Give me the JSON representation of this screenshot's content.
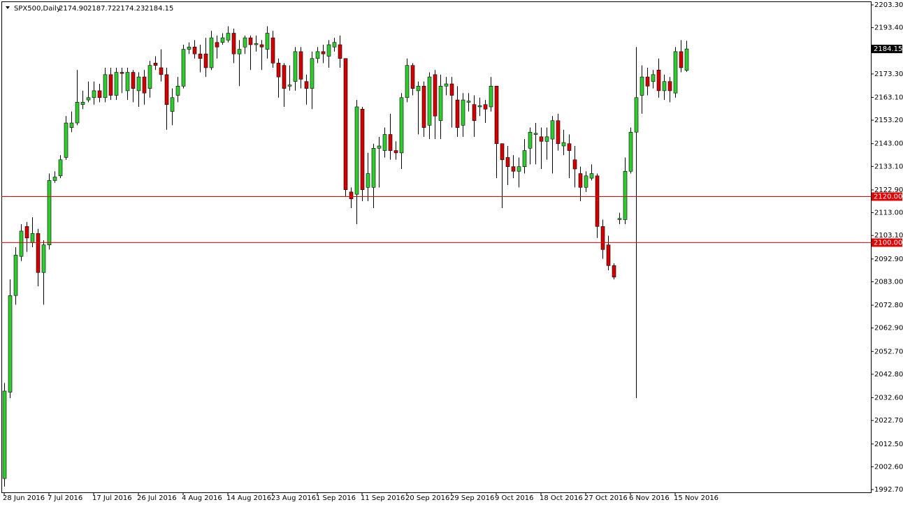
{
  "chart_data": {
    "type": "candlestick",
    "header": {
      "symbol": "SPX500,Daily",
      "prices": [
        "2174.90",
        "2187.72",
        "2174.23",
        "2184.15"
      ]
    },
    "categories": [
      "28 Jun 2016",
      null,
      null,
      null,
      null,
      null,
      null,
      null,
      "7 Jul 2016",
      null,
      null,
      null,
      null,
      null,
      null,
      null,
      "17 Jul 2016",
      null,
      null,
      null,
      null,
      null,
      null,
      null,
      "26 Jul 2016",
      null,
      null,
      null,
      null,
      null,
      null,
      null,
      "4 Aug 2016",
      null,
      null,
      null,
      null,
      null,
      null,
      null,
      "14 Aug 2016",
      null,
      null,
      null,
      null,
      null,
      null,
      null,
      "23 Aug 2016",
      null,
      null,
      null,
      null,
      null,
      null,
      null,
      "1 Sep 2016",
      null,
      null,
      null,
      null,
      null,
      null,
      null,
      "11 Sep 2016",
      null,
      null,
      null,
      null,
      null,
      null,
      null,
      "20 Sep 2016",
      null,
      null,
      null,
      null,
      null,
      null,
      null,
      "29 Sep 2016",
      null,
      null,
      null,
      null,
      null,
      null,
      null,
      "9 Oct 2016",
      null,
      null,
      null,
      null,
      null,
      null,
      null,
      "18 Oct 2016",
      null,
      null,
      null,
      null,
      null,
      null,
      null,
      "27 Oct 2016",
      null,
      null,
      null,
      null,
      null,
      null,
      null,
      "6 Nov 2016",
      null,
      null,
      null,
      null,
      null,
      null,
      null,
      "15 Nov 2016",
      null,
      null
    ],
    "open": [
      1997.5,
      2035,
      2077,
      2094,
      2107,
      2100,
      2104,
      2087,
      2099,
      2127,
      2129,
      2137,
      2150,
      2152,
      2160,
      2162,
      2163,
      2166,
      2163,
      2173,
      2164,
      2174,
      2166,
      2174,
      2166,
      2172,
      2167,
      2178,
      2176,
      2173,
      2157,
      2164,
      2168,
      2184,
      2185,
      2182,
      2182,
      2176,
      2187,
      2187,
      2188,
      2191,
      2182,
      2185,
      2189,
      2186,
      2186,
      2184,
      2189,
      2178,
      2177,
      2168,
      2170,
      2183,
      2170,
      2167,
      2180,
      2183,
      2181,
      2185,
      2186,
      2180,
      2122,
      2121,
      2158,
      2124,
      2124,
      2141,
      2140,
      2147,
      2140,
      2139,
      2163,
      2177,
      2166,
      2168,
      2151,
      2173,
      2153,
      2168,
      2169,
      2162,
      2151,
      2161,
      2160,
      2159,
      2160,
      2159,
      2168,
      2143,
      2137,
      2133,
      2131,
      2133,
      2141,
      2147,
      2146,
      2144,
      2145,
      2153,
      2142,
      2143,
      2136,
      2130,
      2124,
      2128,
      2129,
      2107,
      2099,
      2090,
      2110,
      2110,
      2131,
      2148,
      2164,
      2172,
      2170,
      2175,
      2166,
      2170,
      2165,
      2183,
      2174.9
    ],
    "high": [
      2039,
      2084,
      2098,
      2108,
      2109,
      2111,
      2106,
      2101,
      2130,
      2131,
      2138,
      2155,
      2157,
      2175,
      2166,
      2170,
      2170,
      2169,
      2176,
      2176,
      2176,
      2176,
      2176,
      2175,
      2174,
      2175,
      2179,
      2181,
      2184,
      2176,
      2167,
      2172,
      2186,
      2187,
      2188,
      2186,
      2189,
      2192,
      2190,
      2191,
      2194,
      2193,
      2188,
      2190,
      2190,
      2190,
      2188,
      2194,
      2192,
      2180,
      2178,
      2177,
      2185,
      2185,
      2173,
      2183,
      2185,
      2186,
      2188,
      2189,
      2190,
      2180,
      2124,
      2162,
      2159,
      2139,
      2143,
      2146,
      2150,
      2156,
      2144,
      2165,
      2180,
      2178,
      2170,
      2170,
      2174,
      2175,
      2173,
      2172,
      2172,
      2168,
      2165,
      2165,
      2164,
      2163,
      2162,
      2172,
      2168,
      2143,
      2142,
      2138,
      2137,
      2145,
      2150,
      2152,
      2150,
      2150,
      2155,
      2156,
      2149,
      2147,
      2142,
      2133,
      2131,
      2134,
      2130,
      2110,
      2103,
      2091,
      2113,
      2137,
      2150,
      2185,
      2177,
      2176,
      2175,
      2180,
      2173,
      2172,
      2185,
      2188,
      2187.72
    ],
    "low": [
      1994,
      2032.4,
      2073,
      2092,
      2096,
      2098,
      2081,
      2073,
      2097,
      2126,
      2128,
      2136,
      2148,
      2151,
      2158,
      2161,
      2160,
      2161,
      2161,
      2162,
      2162,
      2165,
      2162,
      2161,
      2159,
      2160,
      2163,
      2175,
      2170,
      2149,
      2151,
      2161,
      2167,
      2182,
      2180,
      2174,
      2172,
      2175,
      2180,
      2186,
      2187,
      2178,
      2168,
      2182,
      2175,
      2183,
      2175,
      2180,
      2176,
      2163,
      2159,
      2166,
      2166,
      2167,
      2160,
      2158,
      2178,
      2178,
      2176,
      2183,
      2176,
      2120,
      2115,
      2108,
      2118,
      2118,
      2115,
      2124,
      2137,
      2136,
      2136,
      2132,
      2161,
      2164,
      2147,
      2146,
      2145,
      2145,
      2145,
      2164,
      2150,
      2146,
      2146,
      2157,
      2146,
      2155,
      2152,
      2157,
      2128,
      2115,
      2125,
      2128,
      2124,
      2130,
      2134,
      2134,
      2132,
      2136,
      2130,
      2140,
      2138,
      2128,
      2124,
      2118,
      2122,
      2127,
      2102,
      2093,
      2088,
      2084,
      2108,
      2108,
      2130,
      2032.4,
      2156,
      2164,
      2167,
      2163,
      2162,
      2161,
      2163,
      2174,
      2174.23
    ],
    "close": [
      2035.5,
      2077,
      2094.6,
      2105,
      2102,
      2104,
      2087,
      2099,
      2127,
      2128.5,
      2136,
      2152,
      2152,
      2161,
      2161,
      2163,
      2166,
      2163,
      2173,
      2164,
      2174,
      2173.5,
      2174,
      2167,
      2172,
      2165,
      2177,
      2177,
      2173,
      2160,
      2163,
      2168,
      2184,
      2185,
      2182,
      2180,
      2176,
      2189,
      2185,
      2189,
      2191,
      2182,
      2184,
      2189,
      2186,
      2186.5,
      2185,
      2191,
      2178,
      2172,
      2167,
      2168.5,
      2183,
      2171,
      2167,
      2180,
      2183,
      2182,
      2186,
      2187,
      2180,
      2123,
      2119,
      2159,
      2123,
      2130,
      2141,
      2142,
      2147,
      2140,
      2139,
      2163,
      2177,
      2167,
      2168,
      2150,
      2172,
      2155,
      2168,
      2169,
      2164,
      2150,
      2162,
      2161.5,
      2153,
      2159.5,
      2158,
      2168,
      2143,
      2136,
      2133,
      2131,
      2133,
      2140,
      2148,
      2147.5,
      2144,
      2146,
      2153,
      2143,
      2143.5,
      2140,
      2132,
      2124,
      2129,
      2130,
      2107,
      2097,
      2090,
      2085,
      2110.5,
      2131,
      2148,
      2163,
      2172,
      2168,
      2173,
      2166,
      2170,
      2166,
      2183,
      2176,
      2184.15
    ],
    "up_color": "#2ecc2e",
    "down_color": "#d40000",
    "ylim": [
      1992.7,
      2203.3
    ],
    "yticks": [
      {
        "value": 2203.3,
        "label": "2203.30"
      },
      {
        "value": 2193.4,
        "label": "2193.40"
      },
      {
        "value": 2173.3,
        "label": "2173.30"
      },
      {
        "value": 2163.1,
        "label": "2163.10"
      },
      {
        "value": 2153.2,
        "label": "2153.20"
      },
      {
        "value": 2143,
        "label": "2143.00"
      },
      {
        "value": 2133.1,
        "label": "2133.10"
      },
      {
        "value": 2122.9,
        "label": "2122.90"
      },
      {
        "value": 2113,
        "label": "2113.00"
      },
      {
        "value": 2103.1,
        "label": "2103.10"
      },
      {
        "value": 2092.9,
        "label": "2092.90"
      },
      {
        "value": 2083,
        "label": "2083.00"
      },
      {
        "value": 2072.8,
        "label": "2072.80"
      },
      {
        "value": 2062.9,
        "label": "2062.90"
      },
      {
        "value": 2052.7,
        "label": "2052.70"
      },
      {
        "value": 2042.8,
        "label": "2042.80"
      },
      {
        "value": 2032.6,
        "label": "2032.60"
      },
      {
        "value": 2022.7,
        "label": "2022.70"
      },
      {
        "value": 2012.5,
        "label": "2012.50"
      },
      {
        "value": 2002.6,
        "label": "2002.60"
      },
      {
        "value": 1992.7,
        "label": "1992.70"
      }
    ],
    "hlines": [
      {
        "value": 2120,
        "label": "2120.00",
        "color": "#e00000"
      },
      {
        "value": 2100,
        "label": "2100.00",
        "color": "#e00000"
      }
    ],
    "grid": false
  }
}
